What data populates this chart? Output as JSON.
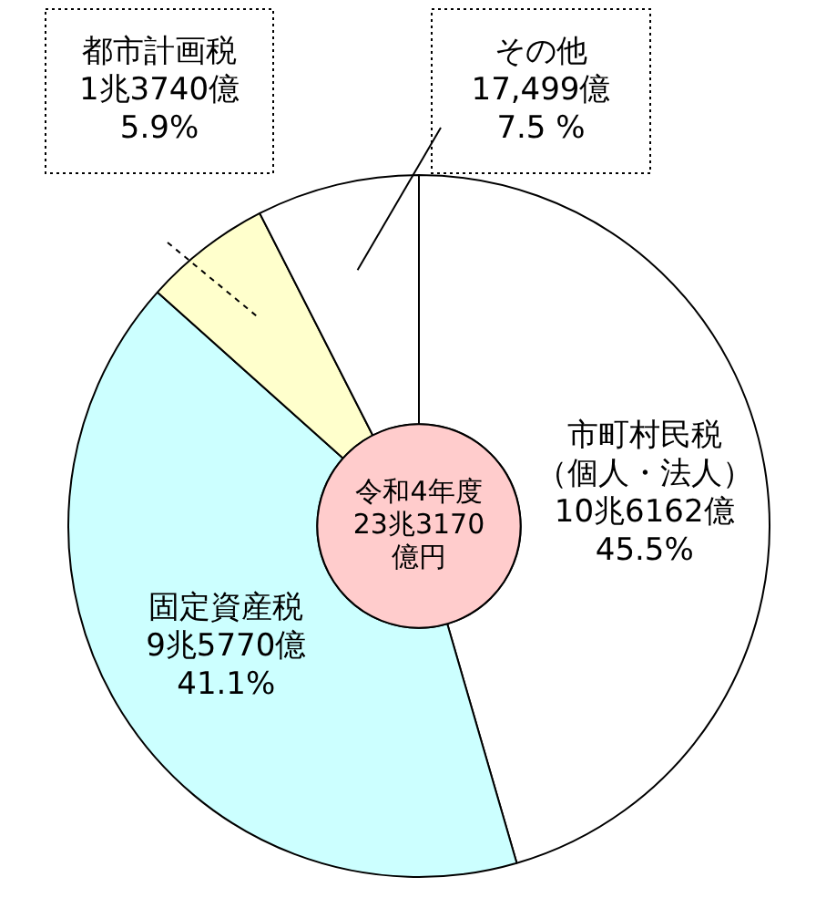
{
  "chart_data": {
    "type": "donut",
    "title": "令和4年度\n23兆3170\n億円",
    "categories": [
      "市町村民税（個人・法人）",
      "固定資産税",
      "都市計画税",
      "その他"
    ],
    "values": [
      45.5,
      41.1,
      5.9,
      7.5
    ],
    "value_labels": [
      "10兆6162億\n45.5%",
      "9兆5770億\n41.1%",
      "1兆3740億\n5.9%",
      "17,499億\n7.5 %"
    ],
    "colors": [
      "#ffffff",
      "#ccffff",
      "#ffffcc",
      "#ffffff"
    ]
  }
}
